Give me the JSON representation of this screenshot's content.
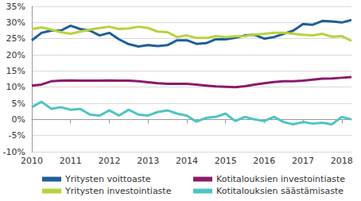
{
  "chart_data": {
    "type": "line",
    "categories": [
      "2010",
      null,
      null,
      null,
      "2011",
      null,
      null,
      null,
      "2012",
      null,
      null,
      null,
      "2013",
      null,
      null,
      null,
      "2014",
      null,
      null,
      null,
      "2015",
      null,
      null,
      null,
      "2016",
      null,
      null,
      null,
      "2017",
      null,
      null,
      null,
      "2018",
      null
    ],
    "series": [
      {
        "name": "Yritysten voittoaste",
        "color": "#1f5f99",
        "values": [
          24.5,
          26.8,
          27.5,
          27.5,
          29.0,
          28.0,
          27.5,
          26.0,
          26.8,
          24.8,
          23.3,
          22.6,
          23.0,
          22.7,
          23.0,
          24.5,
          24.5,
          23.4,
          23.6,
          24.8,
          24.8,
          25.3,
          26.0,
          26.2,
          25.0,
          25.5,
          26.5,
          27.5,
          29.5,
          29.3,
          30.5,
          30.3,
          30.0,
          30.8
        ]
      },
      {
        "name": "Kotitalouksien investointiaste",
        "color": "#8c1a6a",
        "values": [
          10.5,
          10.8,
          11.8,
          12.0,
          12.1,
          12.0,
          12.0,
          12.0,
          12.1,
          12.0,
          12.0,
          11.8,
          11.5,
          11.2,
          11.0,
          11.0,
          11.0,
          10.8,
          10.5,
          10.2,
          10.1,
          10.0,
          10.3,
          10.8,
          11.2,
          11.6,
          11.8,
          11.8,
          12.0,
          12.3,
          12.6,
          12.7,
          12.9,
          13.1
        ]
      },
      {
        "name": "Yritysten investointiaste",
        "color": "#b6d43a",
        "values": [
          28.0,
          28.5,
          27.8,
          27.0,
          26.5,
          27.2,
          27.8,
          28.3,
          28.7,
          28.0,
          28.2,
          28.7,
          28.3,
          27.2,
          27.0,
          25.5,
          26.0,
          25.2,
          25.2,
          25.8,
          25.5,
          25.7,
          25.8,
          26.3,
          26.5,
          26.8,
          26.8,
          26.5,
          26.2,
          26.0,
          26.5,
          25.6,
          25.8,
          24.3
        ]
      },
      {
        "name": "Kotitalouksien säästämisaste",
        "color": "#4dc4c4",
        "values": [
          3.8,
          5.5,
          3.3,
          3.8,
          3.0,
          3.3,
          1.5,
          1.2,
          2.8,
          1.2,
          3.0,
          1.5,
          1.2,
          2.3,
          2.8,
          1.8,
          1.2,
          -0.7,
          0.5,
          0.8,
          1.8,
          -0.5,
          0.8,
          0.0,
          -0.5,
          0.8,
          -0.8,
          -1.5,
          -0.8,
          -1.3,
          -1.0,
          -1.5,
          0.8,
          0.0
        ]
      }
    ],
    "ylim": [
      -10,
      35
    ],
    "yticks": [
      {
        "value": -10,
        "label": "-10%"
      },
      {
        "value": -5,
        "label": "-5%"
      },
      {
        "value": 0,
        "label": "0%"
      },
      {
        "value": 5,
        "label": "5%"
      },
      {
        "value": 10,
        "label": "10%"
      },
      {
        "value": 15,
        "label": "15%"
      },
      {
        "value": 20,
        "label": "20%"
      },
      {
        "value": 25,
        "label": "25%"
      },
      {
        "value": 30,
        "label": "30%"
      },
      {
        "value": 35,
        "label": "35%"
      }
    ],
    "grid": true,
    "legend": "bottom"
  }
}
